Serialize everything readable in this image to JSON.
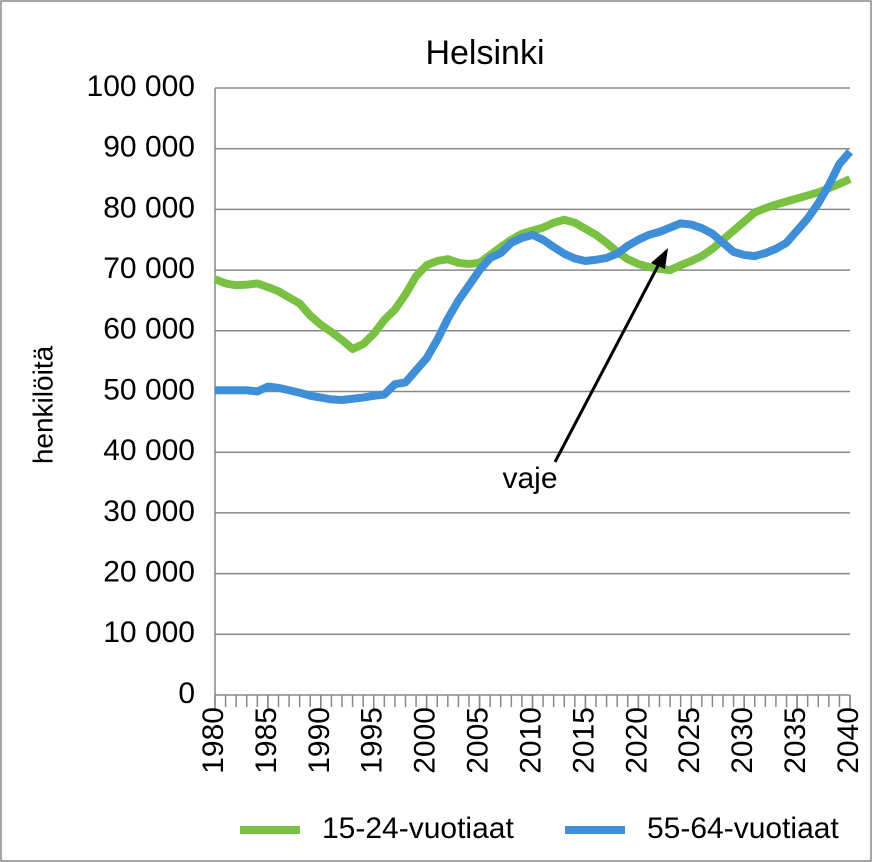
{
  "chart_data": {
    "type": "line",
    "title": "Helsinki",
    "y_label": "henkilöitä",
    "annotation": "vaje",
    "x": [
      1980,
      1981,
      1982,
      1983,
      1984,
      1985,
      1986,
      1987,
      1988,
      1989,
      1990,
      1991,
      1992,
      1993,
      1994,
      1995,
      1996,
      1997,
      1998,
      1999,
      2000,
      2001,
      2002,
      2003,
      2004,
      2005,
      2006,
      2007,
      2008,
      2009,
      2010,
      2011,
      2012,
      2013,
      2014,
      2015,
      2016,
      2017,
      2018,
      2019,
      2020,
      2021,
      2022,
      2023,
      2024,
      2025,
      2026,
      2027,
      2028,
      2029,
      2030,
      2031,
      2032,
      2033,
      2034,
      2035,
      2036,
      2037,
      2038,
      2039,
      2040
    ],
    "xlim": [
      1980,
      2040
    ],
    "xticks": [
      1980,
      1985,
      1990,
      1995,
      2000,
      2005,
      2010,
      2015,
      2020,
      2025,
      2030,
      2035,
      2040
    ],
    "ylim": [
      0,
      100000
    ],
    "yticks": [
      {
        "value": 0,
        "label": "0"
      },
      {
        "value": 10000,
        "label": "10 000"
      },
      {
        "value": 20000,
        "label": "20 000"
      },
      {
        "value": 30000,
        "label": "30 000"
      },
      {
        "value": 40000,
        "label": "40 000"
      },
      {
        "value": 50000,
        "label": "50 000"
      },
      {
        "value": 60000,
        "label": "60 000"
      },
      {
        "value": 70000,
        "label": "70 000"
      },
      {
        "value": 80000,
        "label": "80 000"
      },
      {
        "value": 90000,
        "label": "90 000"
      },
      {
        "value": 100000,
        "label": "100 000"
      }
    ],
    "grid": true,
    "legend": "bottom",
    "series": [
      {
        "name": "15-24-vuotiaat",
        "color": "#7ac143",
        "values": [
          68500,
          67800,
          67500,
          67600,
          67800,
          67200,
          66500,
          65500,
          64500,
          62500,
          61000,
          59800,
          58500,
          57000,
          57800,
          59500,
          61800,
          63500,
          66000,
          69000,
          70800,
          71500,
          71800,
          71200,
          71000,
          71200,
          72500,
          73800,
          75000,
          76000,
          76500,
          77000,
          77800,
          78300,
          77800,
          76800,
          75800,
          74500,
          73000,
          71800,
          71000,
          70500,
          70200,
          70000,
          70800,
          71500,
          72300,
          73500,
          75000,
          76500,
          78000,
          79500,
          80200,
          80800,
          81300,
          81800,
          82300,
          82800,
          83500,
          84200,
          85000
        ]
      },
      {
        "name": "55-64-vuotiaat",
        "color": "#3e8fd8",
        "values": [
          50200,
          50200,
          50200,
          50200,
          50000,
          50800,
          50600,
          50200,
          49800,
          49300,
          49000,
          48700,
          48600,
          48800,
          49000,
          49300,
          49500,
          51200,
          51500,
          53500,
          55500,
          58500,
          62000,
          65000,
          67500,
          70000,
          72000,
          72800,
          74500,
          75300,
          75800,
          75000,
          73800,
          72700,
          71900,
          71500,
          71700,
          72000,
          72700,
          74000,
          75000,
          75800,
          76300,
          77000,
          77700,
          77500,
          76900,
          76000,
          74500,
          73000,
          72500,
          72300,
          72800,
          73500,
          74500,
          76500,
          78500,
          81000,
          84000,
          87500,
          89500
        ]
      }
    ]
  }
}
